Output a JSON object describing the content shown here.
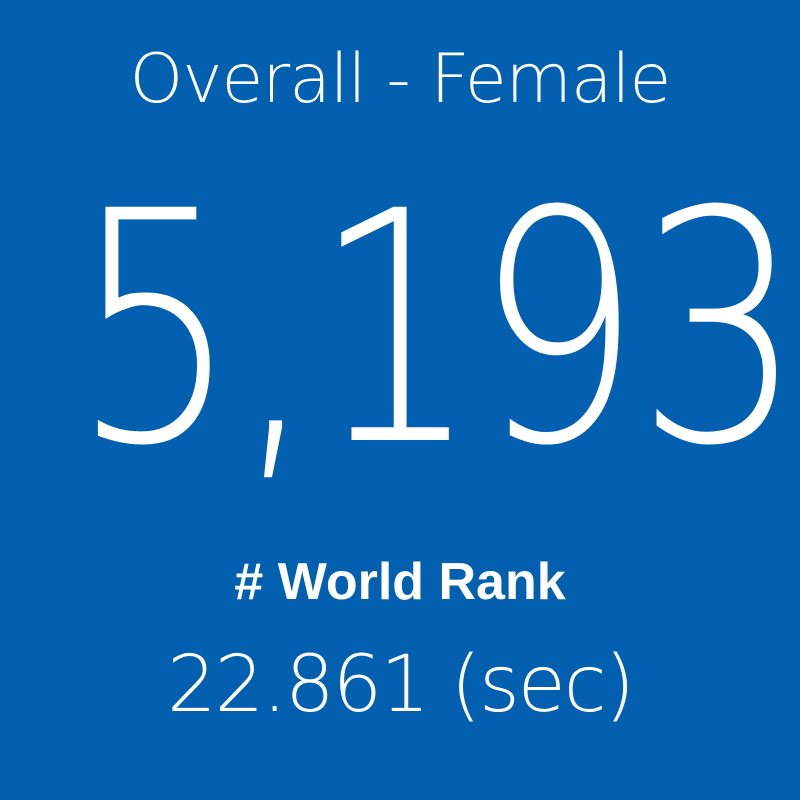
{
  "title": "Overall - Female",
  "value": "5,193",
  "label": "# World Rank",
  "subvalue": "22.861 (sec)"
}
